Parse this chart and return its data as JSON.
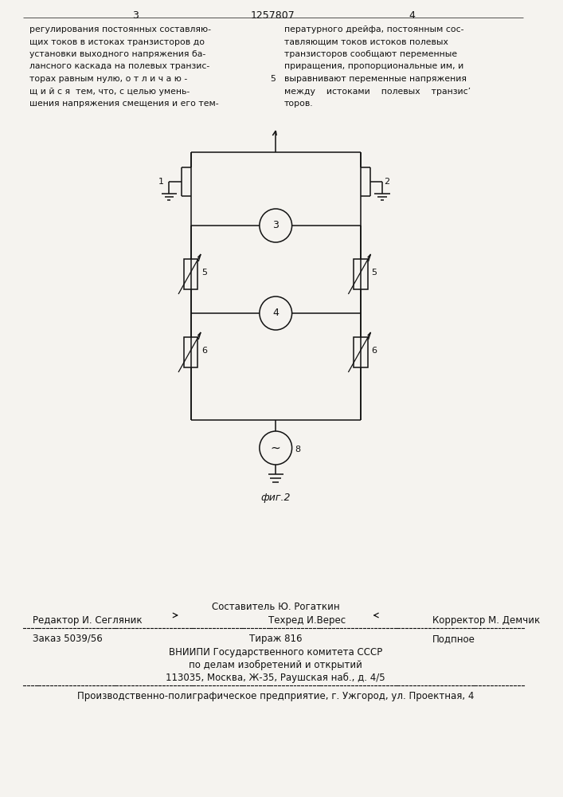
{
  "bg_color": "#f5f3ef",
  "text_color": "#111111",
  "line_color": "#111111",
  "page_number_left": "3",
  "page_number_center": "1257807",
  "page_number_right": "4",
  "left_column_text": [
    "регулирования постоянных составляю-",
    "щих токов в истоках транзисторов до",
    "установки выходного напряжения ба-",
    "лансного каскада на полевых транзис-",
    "торах равным нулю, о т л и ч а ю -",
    "щ и й с я  тем, что, с целью умень-",
    "шения напряжения смещения и его тем-"
  ],
  "right_column_text": [
    "пературного дрейфа, постоянным сос-",
    "тавляющим токов истоков полевых",
    "транзисторов сообщают переменные",
    "приращения, пропорциональные им, и",
    "выравнивают переменные напряжения",
    "между    истоками    полевых    транзис’",
    "торов."
  ],
  "fig_label": "фиг.2",
  "footer_line1_center": "Составитель Ю. Рогаткин",
  "footer_line2_left": "Редактор И. Сегляник",
  "footer_line2_center": "Техред И.Верес",
  "footer_line2_right": "Корректор М. Демчик",
  "footer_order": "Заказ 5039/56",
  "footer_tirazh": "Тираж 816",
  "footer_podpisnoe": "Подпное",
  "footer_vniipie": "ВНИИПИ Государственного комитета СССР",
  "footer_po_delam": "по делам изобретений и открытий",
  "footer_address": "113035, Москва, Ж-35, Раушская наб., д. 4/5",
  "footer_last": "Производственно-полиграфическое предприятие, г. Ужгород, ул. Проектная, 4"
}
